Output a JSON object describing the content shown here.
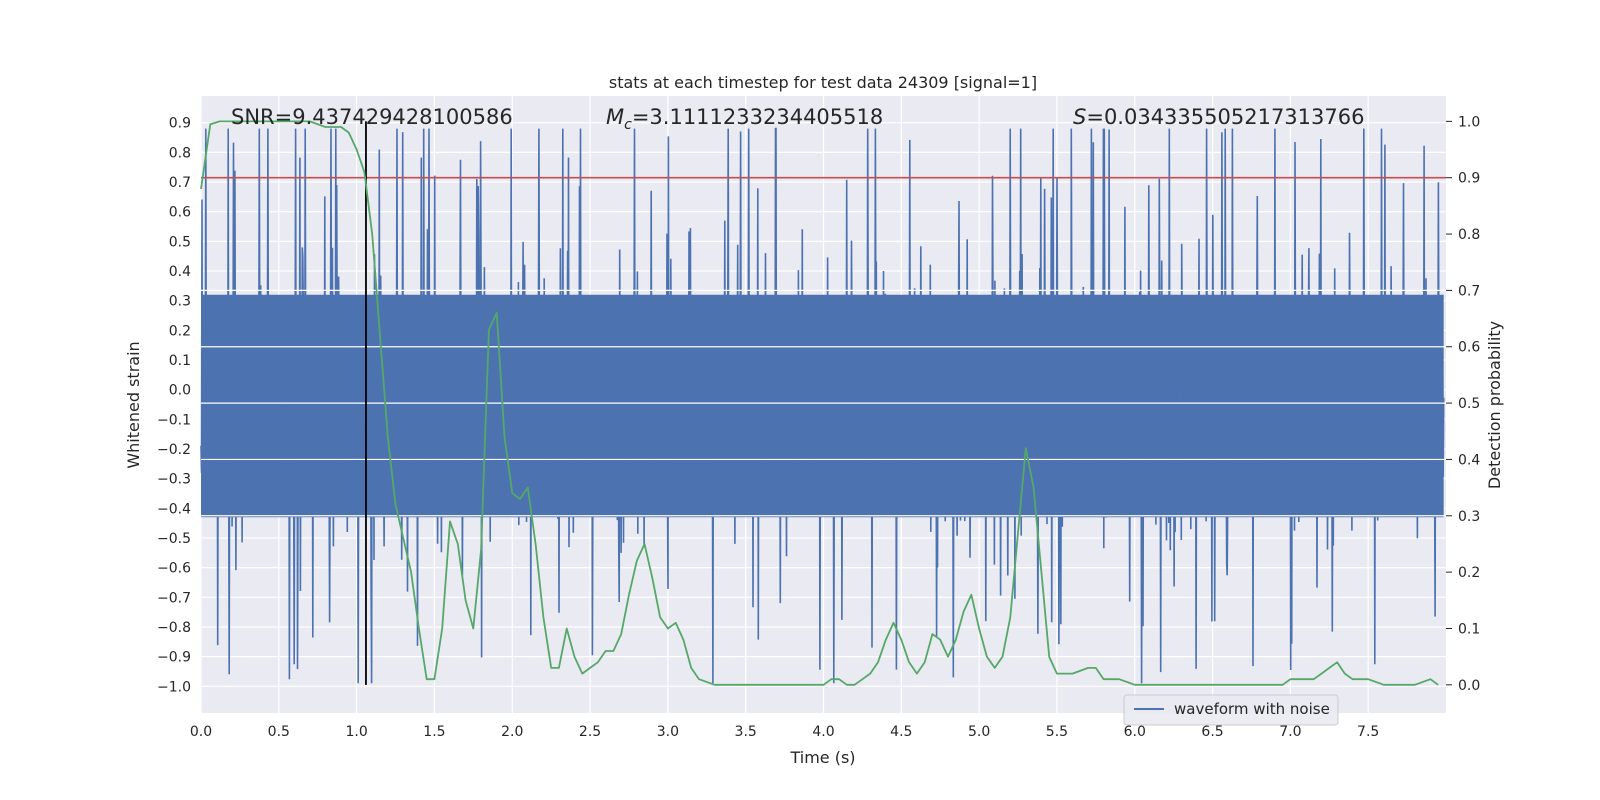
{
  "chart_data": {
    "type": "line",
    "title": "stats at each timestep for test data 24309 [signal=1]",
    "xlabel": "Time (s)",
    "ylabel_left": "Whitened strain",
    "ylabel_right": "Detection probability",
    "xlim": [
      0.0,
      8.0
    ],
    "ylim_left": [
      -1.09,
      0.99
    ],
    "ylim_right": [
      -0.05,
      1.045
    ],
    "x_ticks": [
      "0.0",
      "0.5",
      "1.0",
      "1.5",
      "2.0",
      "2.5",
      "3.0",
      "3.5",
      "4.0",
      "4.5",
      "5.0",
      "5.5",
      "6.0",
      "6.5",
      "7.0",
      "7.5"
    ],
    "y_ticks_left": [
      "0.9",
      "0.8",
      "0.7",
      "0.6",
      "0.5",
      "0.4",
      "0.3",
      "0.2",
      "0.1",
      "0.0",
      "-0.1",
      "-0.2",
      "-0.3",
      "-0.4",
      "-0.5",
      "-0.6",
      "-0.7",
      "-0.8",
      "-0.9",
      "-1.0"
    ],
    "y_ticks_right": [
      "1.0",
      "0.9",
      "0.8",
      "0.7",
      "0.6",
      "0.5",
      "0.4",
      "0.3",
      "0.2",
      "0.1",
      "0.0"
    ],
    "grid": true,
    "annotations": {
      "snr": "SNR=9.437429428100586",
      "mc_symbol": "M",
      "mc_sub": "c",
      "mc_value": "=3.1111233234405518",
      "s_symbol": "S",
      "s_value": "=0.034335505217313766"
    },
    "threshold": {
      "value": 0.9,
      "axis": "right",
      "color": "#c44e52"
    },
    "marker_time": 1.06,
    "legend": {
      "label": "waveform with noise",
      "location": "lower-right"
    },
    "colors": {
      "waveform": "#4c72b0",
      "probability": "#55a868",
      "threshold": "#c44e52",
      "marker": "#000000",
      "background": "#eaeaf2",
      "grid": "#ffffff"
    },
    "series": [
      {
        "name": "waveform with noise",
        "axis": "left",
        "kind": "noise",
        "core_envelope": [
          -0.43,
          0.32
        ],
        "peak_max": [
          0.88,
          -0.99
        ],
        "note": "dense whitened strain samples, mostly within core envelope with spikes to extremes"
      },
      {
        "name": "detection probability",
        "axis": "right",
        "x": [
          0.0,
          0.06,
          0.12,
          0.2,
          0.3,
          0.4,
          0.5,
          0.6,
          0.7,
          0.8,
          0.9,
          0.95,
          1.0,
          1.05,
          1.1,
          1.15,
          1.2,
          1.25,
          1.3,
          1.35,
          1.4,
          1.45,
          1.5,
          1.55,
          1.6,
          1.65,
          1.7,
          1.75,
          1.8,
          1.85,
          1.9,
          1.95,
          2.0,
          2.05,
          2.1,
          2.15,
          2.2,
          2.25,
          2.3,
          2.35,
          2.4,
          2.45,
          2.5,
          2.55,
          2.6,
          2.65,
          2.7,
          2.75,
          2.8,
          2.85,
          2.9,
          2.95,
          3.0,
          3.05,
          3.1,
          3.15,
          3.2,
          3.3,
          3.4,
          3.5,
          3.6,
          3.7,
          3.8,
          3.9,
          4.0,
          4.05,
          4.1,
          4.15,
          4.2,
          4.25,
          4.3,
          4.35,
          4.4,
          4.45,
          4.5,
          4.55,
          4.6,
          4.65,
          4.7,
          4.75,
          4.8,
          4.85,
          4.9,
          4.95,
          5.0,
          5.05,
          5.1,
          5.15,
          5.2,
          5.25,
          5.3,
          5.35,
          5.4,
          5.45,
          5.5,
          5.6,
          5.7,
          5.75,
          5.8,
          5.9,
          6.0,
          6.2,
          6.4,
          6.6,
          6.8,
          6.9,
          6.95,
          7.0,
          7.05,
          7.1,
          7.15,
          7.2,
          7.25,
          7.3,
          7.35,
          7.4,
          7.45,
          7.5,
          7.6,
          7.7,
          7.8,
          7.9,
          7.95
        ],
        "y": [
          0.88,
          0.995,
          1.0,
          1.0,
          1.0,
          1.0,
          1.0,
          1.0,
          1.0,
          0.99,
          0.99,
          0.98,
          0.95,
          0.91,
          0.8,
          0.62,
          0.44,
          0.32,
          0.26,
          0.2,
          0.1,
          0.01,
          0.01,
          0.1,
          0.29,
          0.25,
          0.15,
          0.1,
          0.24,
          0.63,
          0.66,
          0.44,
          0.34,
          0.33,
          0.35,
          0.25,
          0.12,
          0.03,
          0.03,
          0.1,
          0.05,
          0.02,
          0.03,
          0.04,
          0.06,
          0.06,
          0.09,
          0.16,
          0.22,
          0.25,
          0.19,
          0.12,
          0.1,
          0.11,
          0.08,
          0.03,
          0.01,
          0.0,
          0.0,
          0.0,
          0.0,
          0.0,
          0.0,
          0.0,
          0.0,
          0.01,
          0.01,
          0.0,
          0.0,
          0.01,
          0.02,
          0.04,
          0.08,
          0.11,
          0.08,
          0.04,
          0.02,
          0.04,
          0.09,
          0.08,
          0.05,
          0.08,
          0.13,
          0.16,
          0.1,
          0.05,
          0.03,
          0.05,
          0.12,
          0.27,
          0.42,
          0.35,
          0.2,
          0.05,
          0.02,
          0.02,
          0.03,
          0.03,
          0.01,
          0.01,
          0.0,
          0.0,
          0.0,
          0.0,
          0.0,
          0.0,
          0.0,
          0.01,
          0.01,
          0.01,
          0.01,
          0.02,
          0.03,
          0.04,
          0.02,
          0.01,
          0.01,
          0.01,
          0.0,
          0.0,
          0.0,
          0.01,
          0.0
        ]
      }
    ]
  }
}
